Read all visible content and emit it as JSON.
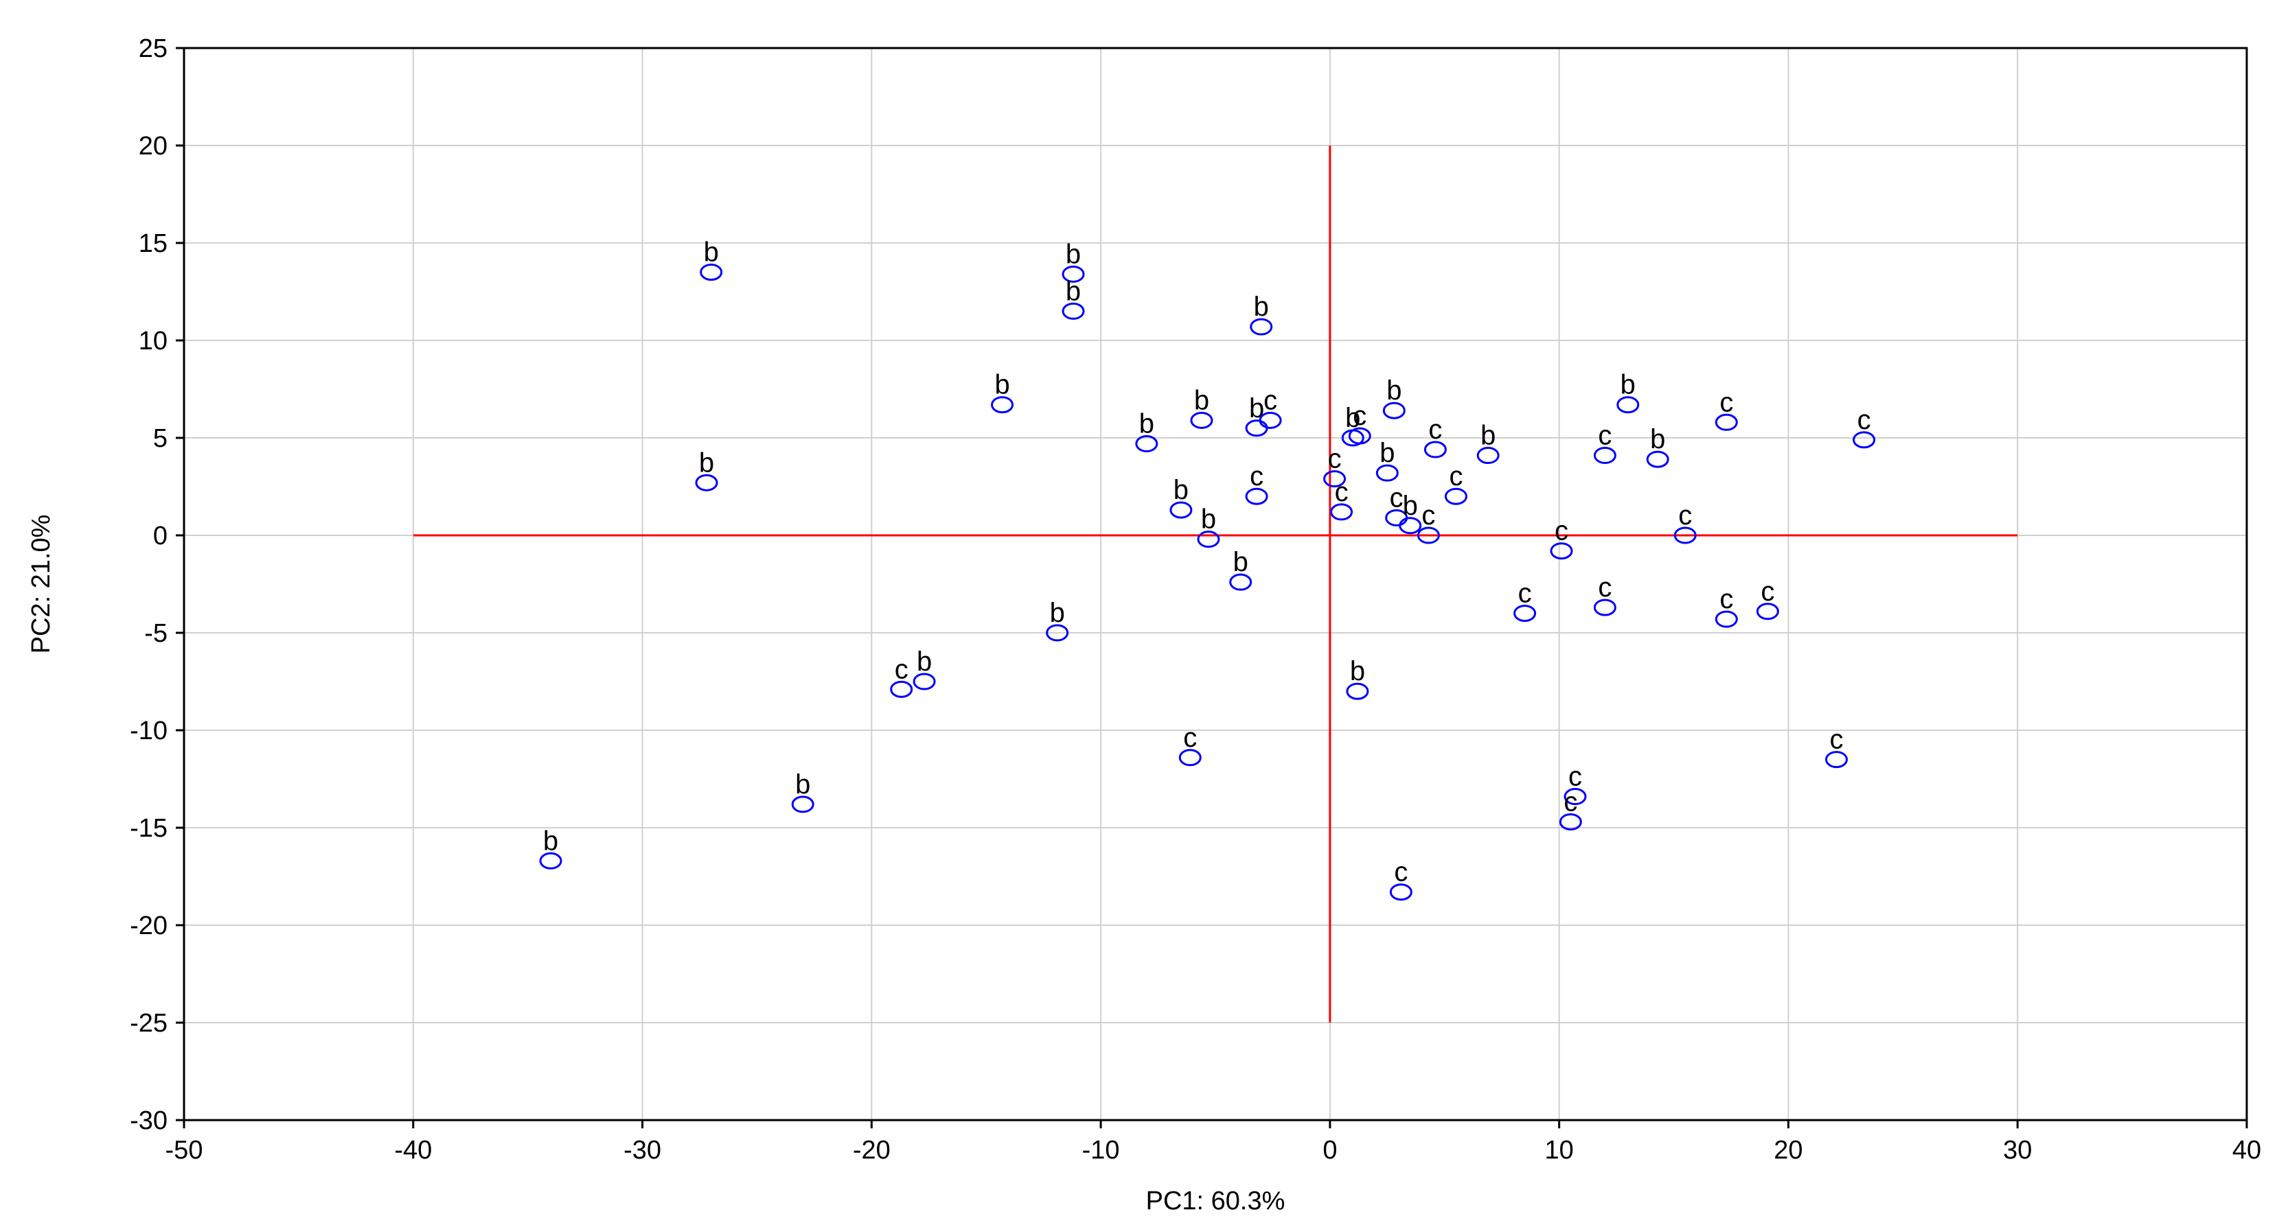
{
  "chart_data": {
    "type": "scatter",
    "xlabel": "PC1: 60.3%",
    "ylabel": "PC2: 21.0%",
    "xlim": [
      -50,
      40
    ],
    "ylim": [
      -30,
      25
    ],
    "xticks": [
      -50,
      -40,
      -30,
      -20,
      -10,
      0,
      10,
      20,
      30,
      40
    ],
    "yticks": [
      25,
      20,
      15,
      10,
      5,
      0,
      -5,
      -10,
      -15,
      -20,
      -25,
      -30
    ],
    "grid": true,
    "marker": "circle",
    "marker_color": "#0000ff",
    "reference_line_color": "#ff0000",
    "reference_lines": {
      "horizontal": {
        "y": 0,
        "x_range": [
          -40,
          30
        ]
      },
      "vertical": {
        "x": 0,
        "y_range": [
          -25,
          20
        ]
      }
    },
    "points": [
      {
        "x": -27.0,
        "y": 13.5,
        "label": "b"
      },
      {
        "x": -11.2,
        "y": 13.4,
        "label": "b"
      },
      {
        "x": -11.2,
        "y": 11.5,
        "label": "b"
      },
      {
        "x": -3.0,
        "y": 10.7,
        "label": "b"
      },
      {
        "x": -14.3,
        "y": 6.7,
        "label": "b"
      },
      {
        "x": -8.0,
        "y": 4.7,
        "label": "b"
      },
      {
        "x": -5.6,
        "y": 5.9,
        "label": "b"
      },
      {
        "x": -3.2,
        "y": 5.5,
        "label": "b"
      },
      {
        "x": -2.6,
        "y": 5.9,
        "label": "c"
      },
      {
        "x": -27.2,
        "y": 2.7,
        "label": "b"
      },
      {
        "x": -6.5,
        "y": 1.3,
        "label": "b"
      },
      {
        "x": -5.3,
        "y": -0.2,
        "label": "b"
      },
      {
        "x": -3.2,
        "y": 2.0,
        "label": "c"
      },
      {
        "x": -3.9,
        "y": -2.4,
        "label": "b"
      },
      {
        "x": 0.2,
        "y": 2.9,
        "label": "c"
      },
      {
        "x": 0.5,
        "y": 1.2,
        "label": "c"
      },
      {
        "x": 1.0,
        "y": 5.0,
        "label": "b"
      },
      {
        "x": 1.3,
        "y": 5.1,
        "label": "c"
      },
      {
        "x": 2.8,
        "y": 6.4,
        "label": "b"
      },
      {
        "x": 2.5,
        "y": 3.2,
        "label": "b"
      },
      {
        "x": 4.6,
        "y": 4.4,
        "label": "c"
      },
      {
        "x": 2.9,
        "y": 0.9,
        "label": "c"
      },
      {
        "x": 3.5,
        "y": 0.5,
        "label": "b"
      },
      {
        "x": 4.3,
        "y": 0.0,
        "label": "c"
      },
      {
        "x": 5.5,
        "y": 2.0,
        "label": "c"
      },
      {
        "x": 6.9,
        "y": 4.1,
        "label": "b"
      },
      {
        "x": 10.1,
        "y": -0.8,
        "label": "c"
      },
      {
        "x": 12.0,
        "y": 4.1,
        "label": "c"
      },
      {
        "x": 13.0,
        "y": 6.7,
        "label": "b"
      },
      {
        "x": 14.3,
        "y": 3.9,
        "label": "b"
      },
      {
        "x": 15.5,
        "y": 0.0,
        "label": "c"
      },
      {
        "x": 17.3,
        "y": 5.8,
        "label": "c"
      },
      {
        "x": 23.3,
        "y": 4.9,
        "label": "c"
      },
      {
        "x": 8.5,
        "y": -4.0,
        "label": "c"
      },
      {
        "x": 12.0,
        "y": -3.7,
        "label": "c"
      },
      {
        "x": 17.3,
        "y": -4.3,
        "label": "c"
      },
      {
        "x": 19.1,
        "y": -3.9,
        "label": "c"
      },
      {
        "x": -11.9,
        "y": -5.0,
        "label": "b"
      },
      {
        "x": -18.7,
        "y": -7.9,
        "label": "c"
      },
      {
        "x": -17.7,
        "y": -7.5,
        "label": "b"
      },
      {
        "x": 1.2,
        "y": -8.0,
        "label": "b"
      },
      {
        "x": -6.1,
        "y": -11.4,
        "label": "c"
      },
      {
        "x": 22.1,
        "y": -11.5,
        "label": "c"
      },
      {
        "x": 10.7,
        "y": -13.4,
        "label": "c"
      },
      {
        "x": 10.5,
        "y": -14.7,
        "label": "c"
      },
      {
        "x": -23.0,
        "y": -13.8,
        "label": "b"
      },
      {
        "x": -34.0,
        "y": -16.7,
        "label": "b"
      },
      {
        "x": 3.1,
        "y": -18.3,
        "label": "c"
      }
    ]
  }
}
